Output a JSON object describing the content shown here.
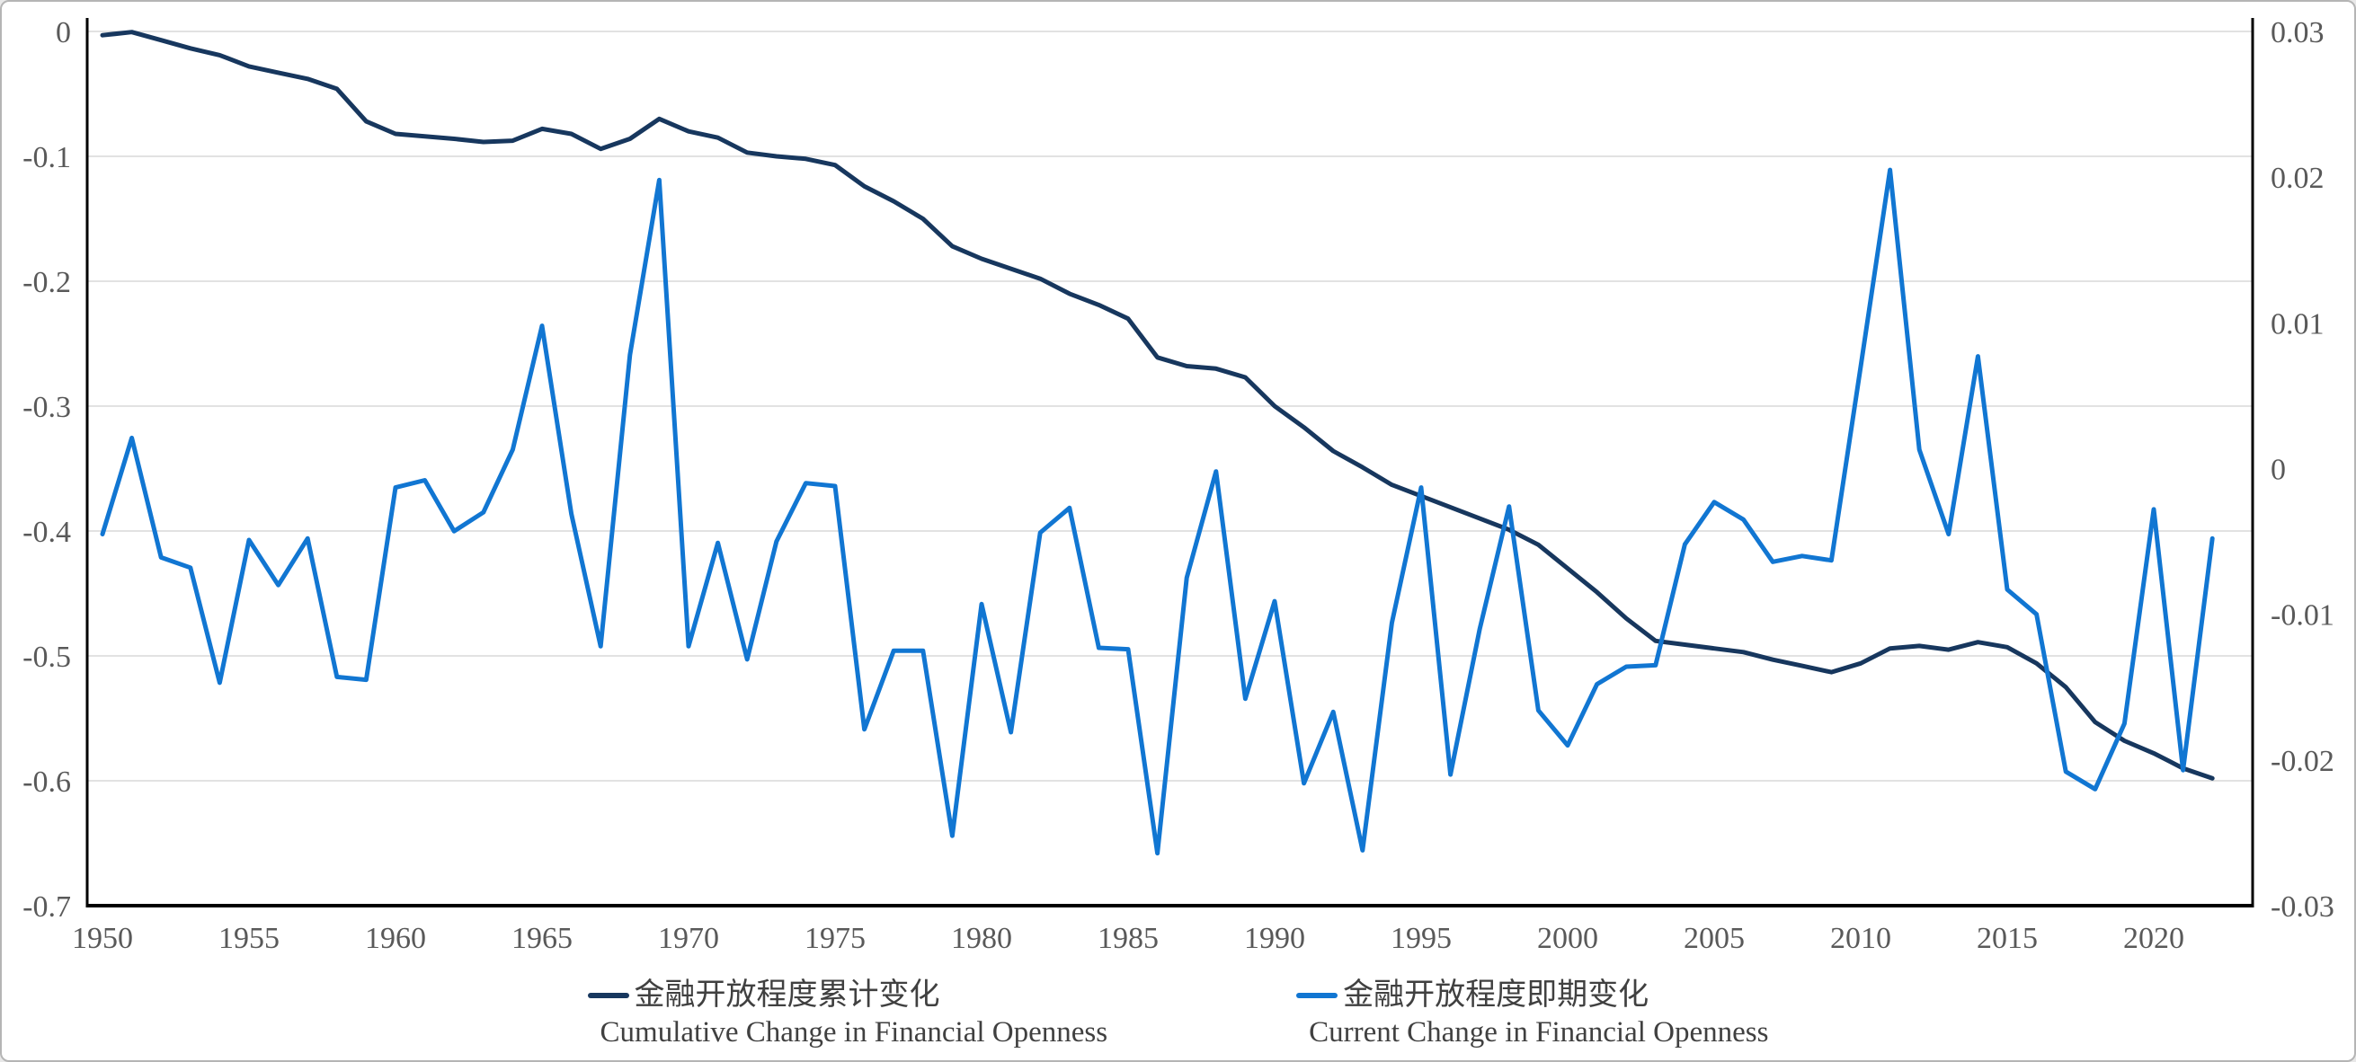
{
  "chart_data": {
    "type": "line",
    "title": "",
    "x_label": "",
    "x": [
      1950,
      1951,
      1952,
      1953,
      1954,
      1955,
      1956,
      1957,
      1958,
      1959,
      1960,
      1961,
      1962,
      1963,
      1964,
      1965,
      1966,
      1967,
      1968,
      1969,
      1970,
      1971,
      1972,
      1973,
      1974,
      1975,
      1976,
      1977,
      1978,
      1979,
      1980,
      1981,
      1982,
      1983,
      1984,
      1985,
      1986,
      1987,
      1988,
      1989,
      1990,
      1991,
      1992,
      1993,
      1994,
      1995,
      1996,
      1997,
      1998,
      1999,
      2000,
      2001,
      2002,
      2003,
      2004,
      2005,
      2006,
      2007,
      2008,
      2009,
      2010,
      2011,
      2012,
      2013,
      2014,
      2015,
      2016,
      2017,
      2018,
      2019,
      2020,
      2021,
      2022
    ],
    "x_tick_labels": [
      "1950",
      "1955",
      "1960",
      "1965",
      "1970",
      "1975",
      "1980",
      "1985",
      "1990",
      "1995",
      "2000",
      "2005",
      "2010",
      "2015",
      "2020"
    ],
    "series": [
      {
        "name_zh": "金融开放程度累计变化",
        "name_en": "Cumulative Change in Financial Openness",
        "axis": "left",
        "color": "#17375E",
        "stroke_width": 5,
        "values": [
          -0.003,
          -0.0005,
          -0.007,
          -0.0135,
          -0.019,
          -0.028,
          -0.033,
          -0.038,
          -0.046,
          -0.072,
          -0.082,
          -0.084,
          -0.086,
          -0.0885,
          -0.0875,
          -0.078,
          -0.082,
          -0.094,
          -0.086,
          -0.07,
          -0.08,
          -0.085,
          -0.097,
          -0.1,
          -0.102,
          -0.107,
          -0.124,
          -0.136,
          -0.15,
          -0.172,
          -0.182,
          -0.19,
          -0.198,
          -0.21,
          -0.219,
          -0.23,
          -0.261,
          -0.268,
          -0.27,
          -0.277,
          -0.3,
          -0.317,
          -0.336,
          -0.349,
          -0.363,
          -0.372,
          -0.381,
          -0.39,
          -0.399,
          -0.411,
          -0.43,
          -0.449,
          -0.47,
          -0.488,
          -0.491,
          -0.494,
          -0.497,
          -0.503,
          -0.508,
          -0.513,
          -0.506,
          -0.494,
          -0.492,
          -0.495,
          -0.489,
          -0.493,
          -0.506,
          -0.525,
          -0.553,
          -0.568,
          -0.578,
          -0.59,
          -0.598
        ]
      },
      {
        "name_zh": "金融开放程度即期变化",
        "name_en": "Current Change in Financial Openness",
        "axis": "right",
        "color": "#1176D2",
        "stroke_width": 5,
        "values": [
          -0.0045,
          0.0021,
          -0.0061,
          -0.0068,
          -0.0147,
          -0.0049,
          -0.008,
          -0.0048,
          -0.0143,
          -0.0145,
          -0.0013,
          -0.0008,
          -0.0043,
          -0.003,
          0.0013,
          0.0098,
          -0.0031,
          -0.0122,
          0.0078,
          0.0198,
          -0.0122,
          -0.0051,
          -0.0131,
          -0.005,
          -0.001,
          -0.0012,
          -0.0179,
          -0.0125,
          -0.0125,
          -0.0252,
          -0.0093,
          -0.0181,
          -0.0044,
          -0.0027,
          -0.0123,
          -0.0124,
          -0.0264,
          -0.0075,
          -0.0002,
          -0.0158,
          -0.0091,
          -0.0216,
          -0.0167,
          -0.0262,
          -0.0106,
          -0.0013,
          -0.021,
          -0.011,
          -0.0026,
          -0.0166,
          -0.019,
          -0.0148,
          -0.0136,
          -0.0135,
          -0.0052,
          -0.0023,
          -0.0035,
          -0.0064,
          -0.006,
          -0.0063,
          0.007,
          0.0205,
          0.0013,
          -0.0045,
          0.0077,
          -0.0083,
          -0.01,
          -0.0208,
          -0.022,
          -0.0175,
          -0.0028,
          -0.0207,
          -0.0048
        ]
      }
    ],
    "left_axis": {
      "min": -0.7,
      "max": 0,
      "tick_labels": [
        "0",
        "-0.1",
        "-0.2",
        "-0.3",
        "-0.4",
        "-0.5",
        "-0.6",
        "-0.7"
      ]
    },
    "right_axis": {
      "min": -0.03,
      "max": 0.03,
      "tick_labels": [
        "0.03",
        "0.02",
        "0.01",
        "0",
        "-0.01",
        "-0.02",
        "-0.03"
      ]
    },
    "grid": {
      "horizontal": true,
      "color": "#D9D9D9",
      "from_axis": "left"
    },
    "axis_line_color": "#000000",
    "label_color": "#595959",
    "legend_position": "bottom-center"
  }
}
